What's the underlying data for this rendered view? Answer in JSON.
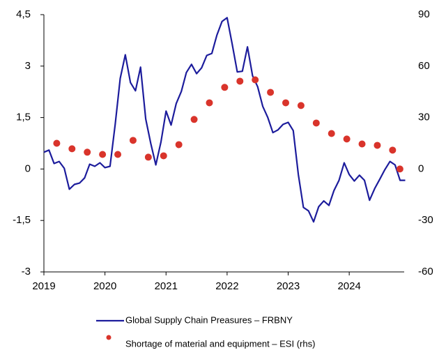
{
  "chart_data": {
    "type": "line",
    "xlim": [
      2019,
      2024.9
    ],
    "xticks": [
      2019,
      2020,
      2021,
      2022,
      2023,
      2024
    ],
    "ylim": [
      -3,
      4.5
    ],
    "yticks": [
      {
        "value": -3,
        "label": "-3"
      },
      {
        "value": -1.5,
        "label": "-1,5"
      },
      0,
      {
        "value": 1.5,
        "label": "1,5"
      },
      3,
      {
        "value": 4.5,
        "label": "4,5"
      }
    ],
    "y2lim": [
      -60,
      90
    ],
    "y2ticks": [
      -60,
      -30,
      0,
      30,
      60,
      90
    ],
    "series": [
      {
        "name": "Global Supply Chain Preasures – FRBNY",
        "type": "line",
        "color": "#1c1c9c",
        "x": [
          2019,
          2019.083,
          2019.167,
          2019.25,
          2019.333,
          2019.417,
          2019.5,
          2019.583,
          2019.667,
          2019.75,
          2019.833,
          2019.917,
          2020,
          2020.083,
          2020.167,
          2020.25,
          2020.333,
          2020.417,
          2020.5,
          2020.583,
          2020.667,
          2020.75,
          2020.833,
          2020.917,
          2021,
          2021.083,
          2021.167,
          2021.25,
          2021.333,
          2021.417,
          2021.5,
          2021.583,
          2021.667,
          2021.75,
          2021.833,
          2021.917,
          2022,
          2022.083,
          2022.167,
          2022.25,
          2022.333,
          2022.417,
          2022.5,
          2022.583,
          2022.667,
          2022.75,
          2022.833,
          2022.917,
          2023,
          2023.083,
          2023.167,
          2023.25,
          2023.333,
          2023.417,
          2023.5,
          2023.583,
          2023.667,
          2023.75,
          2023.833,
          2023.917,
          2024,
          2024.083,
          2024.167,
          2024.25,
          2024.333,
          2024.417,
          2024.5,
          2024.583,
          2024.667,
          2024.75,
          2024.833,
          2024.917
        ],
        "values": [
          0.49,
          0.55,
          0.16,
          0.22,
          0.02,
          -0.59,
          -0.45,
          -0.41,
          -0.26,
          0.14,
          0.08,
          0.18,
          0.04,
          0.08,
          1.3,
          2.64,
          3.33,
          2.52,
          2.28,
          2.97,
          1.46,
          0.75,
          0.12,
          0.79,
          1.69,
          1.28,
          1.91,
          2.26,
          2.81,
          3.05,
          2.78,
          2.95,
          3.31,
          3.37,
          3.9,
          4.3,
          4.41,
          3.64,
          2.83,
          2.85,
          3.56,
          2.72,
          2.4,
          1.83,
          1.5,
          1.06,
          1.14,
          1.3,
          1.36,
          1.12,
          -0.16,
          -1.12,
          -1.22,
          -1.54,
          -1.1,
          -0.93,
          -1.06,
          -0.63,
          -0.33,
          0.18,
          -0.16,
          -0.35,
          -0.18,
          -0.33,
          -0.91,
          -0.57,
          -0.3,
          -0.02,
          0.22,
          0.12,
          -0.33,
          -0.33
        ]
      },
      {
        "name": "Shortage of material and equipment – ESI (rhs)",
        "type": "scatter",
        "axis": "y2",
        "color": "#d9342b",
        "x": [
          2019.21,
          2019.46,
          2019.71,
          2019.96,
          2020.21,
          2020.46,
          2020.71,
          2020.96,
          2021.21,
          2021.46,
          2021.71,
          2021.96,
          2022.21,
          2022.46,
          2022.71,
          2022.96,
          2023.21,
          2023.46,
          2023.71,
          2023.96,
          2024.21,
          2024.46,
          2024.71,
          2024.83
        ],
        "values": [
          15,
          11.8,
          9.8,
          8.5,
          8.5,
          16.7,
          6.9,
          7.7,
          14.2,
          28.9,
          38.6,
          47.6,
          51.2,
          52,
          44.7,
          38.6,
          37,
          26.8,
          20.7,
          17.5,
          14.6,
          13.8,
          11,
          0
        ]
      }
    ]
  }
}
